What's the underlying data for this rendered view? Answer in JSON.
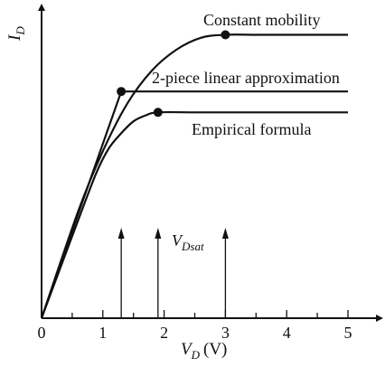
{
  "chart_data": {
    "type": "line",
    "xlabel_symbol": "V",
    "xlabel_sub": "D",
    "xlabel_unit": "(V)",
    "ylabel_symbol": "I",
    "ylabel_sub": "D",
    "x_ticks": [
      0,
      1,
      2,
      3,
      4,
      5
    ],
    "x_tick_labels": [
      "0",
      "1",
      "2",
      "3",
      "4",
      "5"
    ],
    "xlim": [
      0,
      5.6
    ],
    "ylim": [
      0,
      1.0
    ],
    "series": [
      {
        "name": "Constant mobility",
        "x": [
          0,
          0.6,
          1.0,
          1.4,
          1.8,
          2.2,
          2.6,
          3.0,
          3.5,
          4.0,
          4.5,
          5.0
        ],
        "y": [
          0,
          0.36,
          0.56,
          0.72,
          0.83,
          0.9,
          0.94,
          0.95,
          0.95,
          0.95,
          0.95,
          0.95
        ],
        "saturation_point": [
          3.0,
          0.95
        ]
      },
      {
        "name": "2-piece linear approximation",
        "x": [
          0,
          1.3,
          5.0
        ],
        "y": [
          0,
          0.76,
          0.76
        ],
        "saturation_point": [
          1.3,
          0.76
        ]
      },
      {
        "name": "Empirical formula",
        "x": [
          0,
          0.6,
          0.9,
          1.1,
          1.3,
          1.5,
          1.7,
          1.9,
          2.5,
          3.0,
          4.0,
          5.0
        ],
        "y": [
          0,
          0.33,
          0.49,
          0.57,
          0.62,
          0.66,
          0.68,
          0.69,
          0.69,
          0.69,
          0.69,
          0.69
        ],
        "saturation_point": [
          1.9,
          0.69
        ]
      }
    ],
    "annotation": {
      "symbol": "V",
      "subscript": "Dsat",
      "arrows_at_x": [
        1.3,
        1.9,
        3.0
      ]
    }
  }
}
